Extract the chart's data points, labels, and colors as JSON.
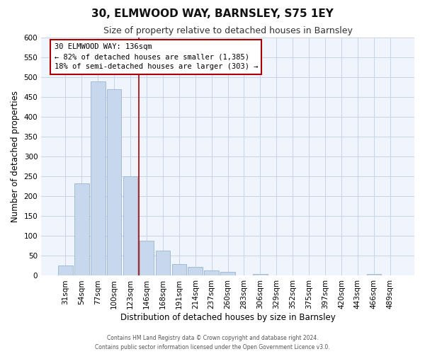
{
  "title": "30, ELMWOOD WAY, BARNSLEY, S75 1EY",
  "subtitle": "Size of property relative to detached houses in Barnsley",
  "xlabel": "Distribution of detached houses by size in Barnsley",
  "ylabel": "Number of detached properties",
  "bar_labels": [
    "31sqm",
    "54sqm",
    "77sqm",
    "100sqm",
    "123sqm",
    "146sqm",
    "168sqm",
    "191sqm",
    "214sqm",
    "237sqm",
    "260sqm",
    "283sqm",
    "306sqm",
    "329sqm",
    "352sqm",
    "375sqm",
    "397sqm",
    "420sqm",
    "443sqm",
    "466sqm",
    "489sqm"
  ],
  "bar_values": [
    25,
    233,
    490,
    470,
    250,
    88,
    63,
    30,
    22,
    13,
    10,
    0,
    5,
    0,
    0,
    0,
    0,
    0,
    0,
    5,
    0
  ],
  "bar_color": "#c8d8ec",
  "bar_edge_color": "#9ab4d0",
  "vline_color": "#aa0000",
  "annotation_text": "30 ELMWOOD WAY: 136sqm\n← 82% of detached houses are smaller (1,385)\n18% of semi-detached houses are larger (303) →",
  "annotation_box_color": "#ffffff",
  "annotation_box_edge": "#aa0000",
  "ylim": [
    0,
    600
  ],
  "yticks": [
    0,
    50,
    100,
    150,
    200,
    250,
    300,
    350,
    400,
    450,
    500,
    550,
    600
  ],
  "footer_line1": "Contains HM Land Registry data © Crown copyright and database right 2024.",
  "footer_line2": "Contains public sector information licensed under the Open Government Licence v3.0.",
  "bg_color": "#f0f4fc",
  "grid_color": "#c8d4e8",
  "title_fontsize": 11,
  "subtitle_fontsize": 9,
  "xlabel_fontsize": 8.5,
  "ylabel_fontsize": 8.5,
  "tick_fontsize": 7.5,
  "annotation_fontsize": 7.5,
  "footer_fontsize": 5.5
}
